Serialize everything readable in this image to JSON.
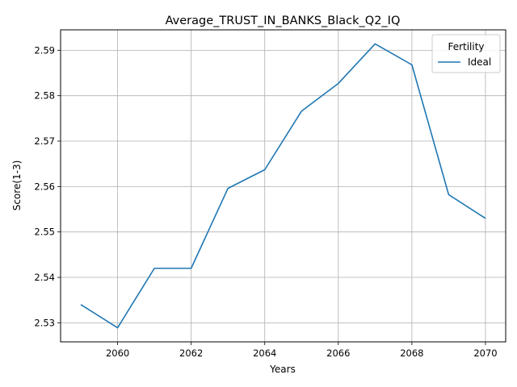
{
  "chart_data": {
    "type": "line",
    "title": "Average_TRUST_IN_BANKS_Black_Q2_IQ",
    "xlabel": "Years",
    "ylabel": "Score(1-3)",
    "x": [
      2059,
      2060,
      2061,
      2062,
      2063,
      2064,
      2065,
      2066,
      2067,
      2068,
      2069,
      2070
    ],
    "series": [
      {
        "name": "Ideal",
        "color": "#1f77b4",
        "values": [
          2.534,
          2.5289,
          2.542,
          2.542,
          2.5596,
          2.5637,
          2.5766,
          2.5827,
          2.5914,
          2.5868,
          2.5582,
          2.553
        ]
      }
    ],
    "xlim": [
      2058.45,
      2070.55
    ],
    "ylim": [
      2.5258,
      2.5945
    ],
    "xticks": [
      2060,
      2062,
      2064,
      2066,
      2068,
      2070
    ],
    "xtick_labels": [
      "2060",
      "2062",
      "2064",
      "2066",
      "2068",
      "2070"
    ],
    "yticks": [
      2.53,
      2.54,
      2.55,
      2.56,
      2.57,
      2.58,
      2.59
    ],
    "ytick_labels": [
      "2.53",
      "2.54",
      "2.55",
      "2.56",
      "2.57",
      "2.58",
      "2.59"
    ],
    "grid": true,
    "legend": {
      "title": "Fertility",
      "position": "top-right"
    }
  }
}
